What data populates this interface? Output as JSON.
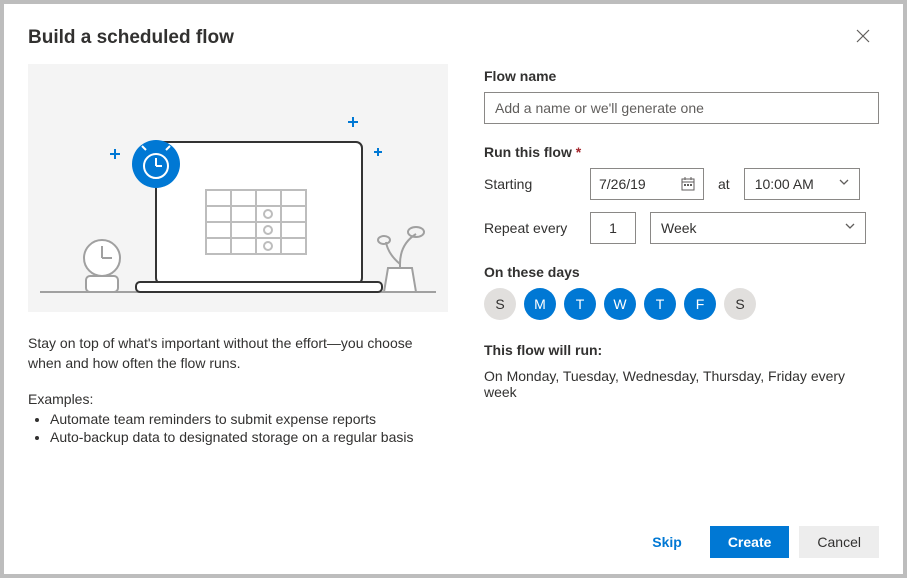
{
  "colors": {
    "accent": "#0078d4",
    "border": "#8a8886",
    "illus_bg": "#f4f4f4",
    "day_off_bg": "#e1dfdd",
    "required": "#a4262c"
  },
  "header": {
    "title": "Build a scheduled flow",
    "close_icon": "close"
  },
  "left": {
    "description": "Stay on top of what's important without the effort—you choose when and how often the flow runs.",
    "examples_label": "Examples:",
    "examples": [
      "Automate team reminders to submit expense reports",
      "Auto-backup data to designated storage on a regular basis"
    ]
  },
  "form": {
    "flowname_label": "Flow name",
    "flowname_placeholder": "Add a name or we'll generate one",
    "flowname_value": "",
    "run_label": "Run this flow",
    "starting_label": "Starting",
    "starting_value": "7/26/19",
    "at_label": "at",
    "time_value": "10:00 AM",
    "repeat_label": "Repeat every",
    "repeat_value": "1",
    "repeat_unit": "Week",
    "days_label": "On these days",
    "days": [
      {
        "abbr": "S",
        "selected": false
      },
      {
        "abbr": "M",
        "selected": true
      },
      {
        "abbr": "T",
        "selected": true
      },
      {
        "abbr": "W",
        "selected": true
      },
      {
        "abbr": "T",
        "selected": true
      },
      {
        "abbr": "F",
        "selected": true
      },
      {
        "abbr": "S",
        "selected": false
      }
    ],
    "summary_label": "This flow will run:",
    "summary_text": "On Monday, Tuesday, Wednesday, Thursday, Friday every week"
  },
  "footer": {
    "skip": "Skip",
    "create": "Create",
    "cancel": "Cancel"
  }
}
